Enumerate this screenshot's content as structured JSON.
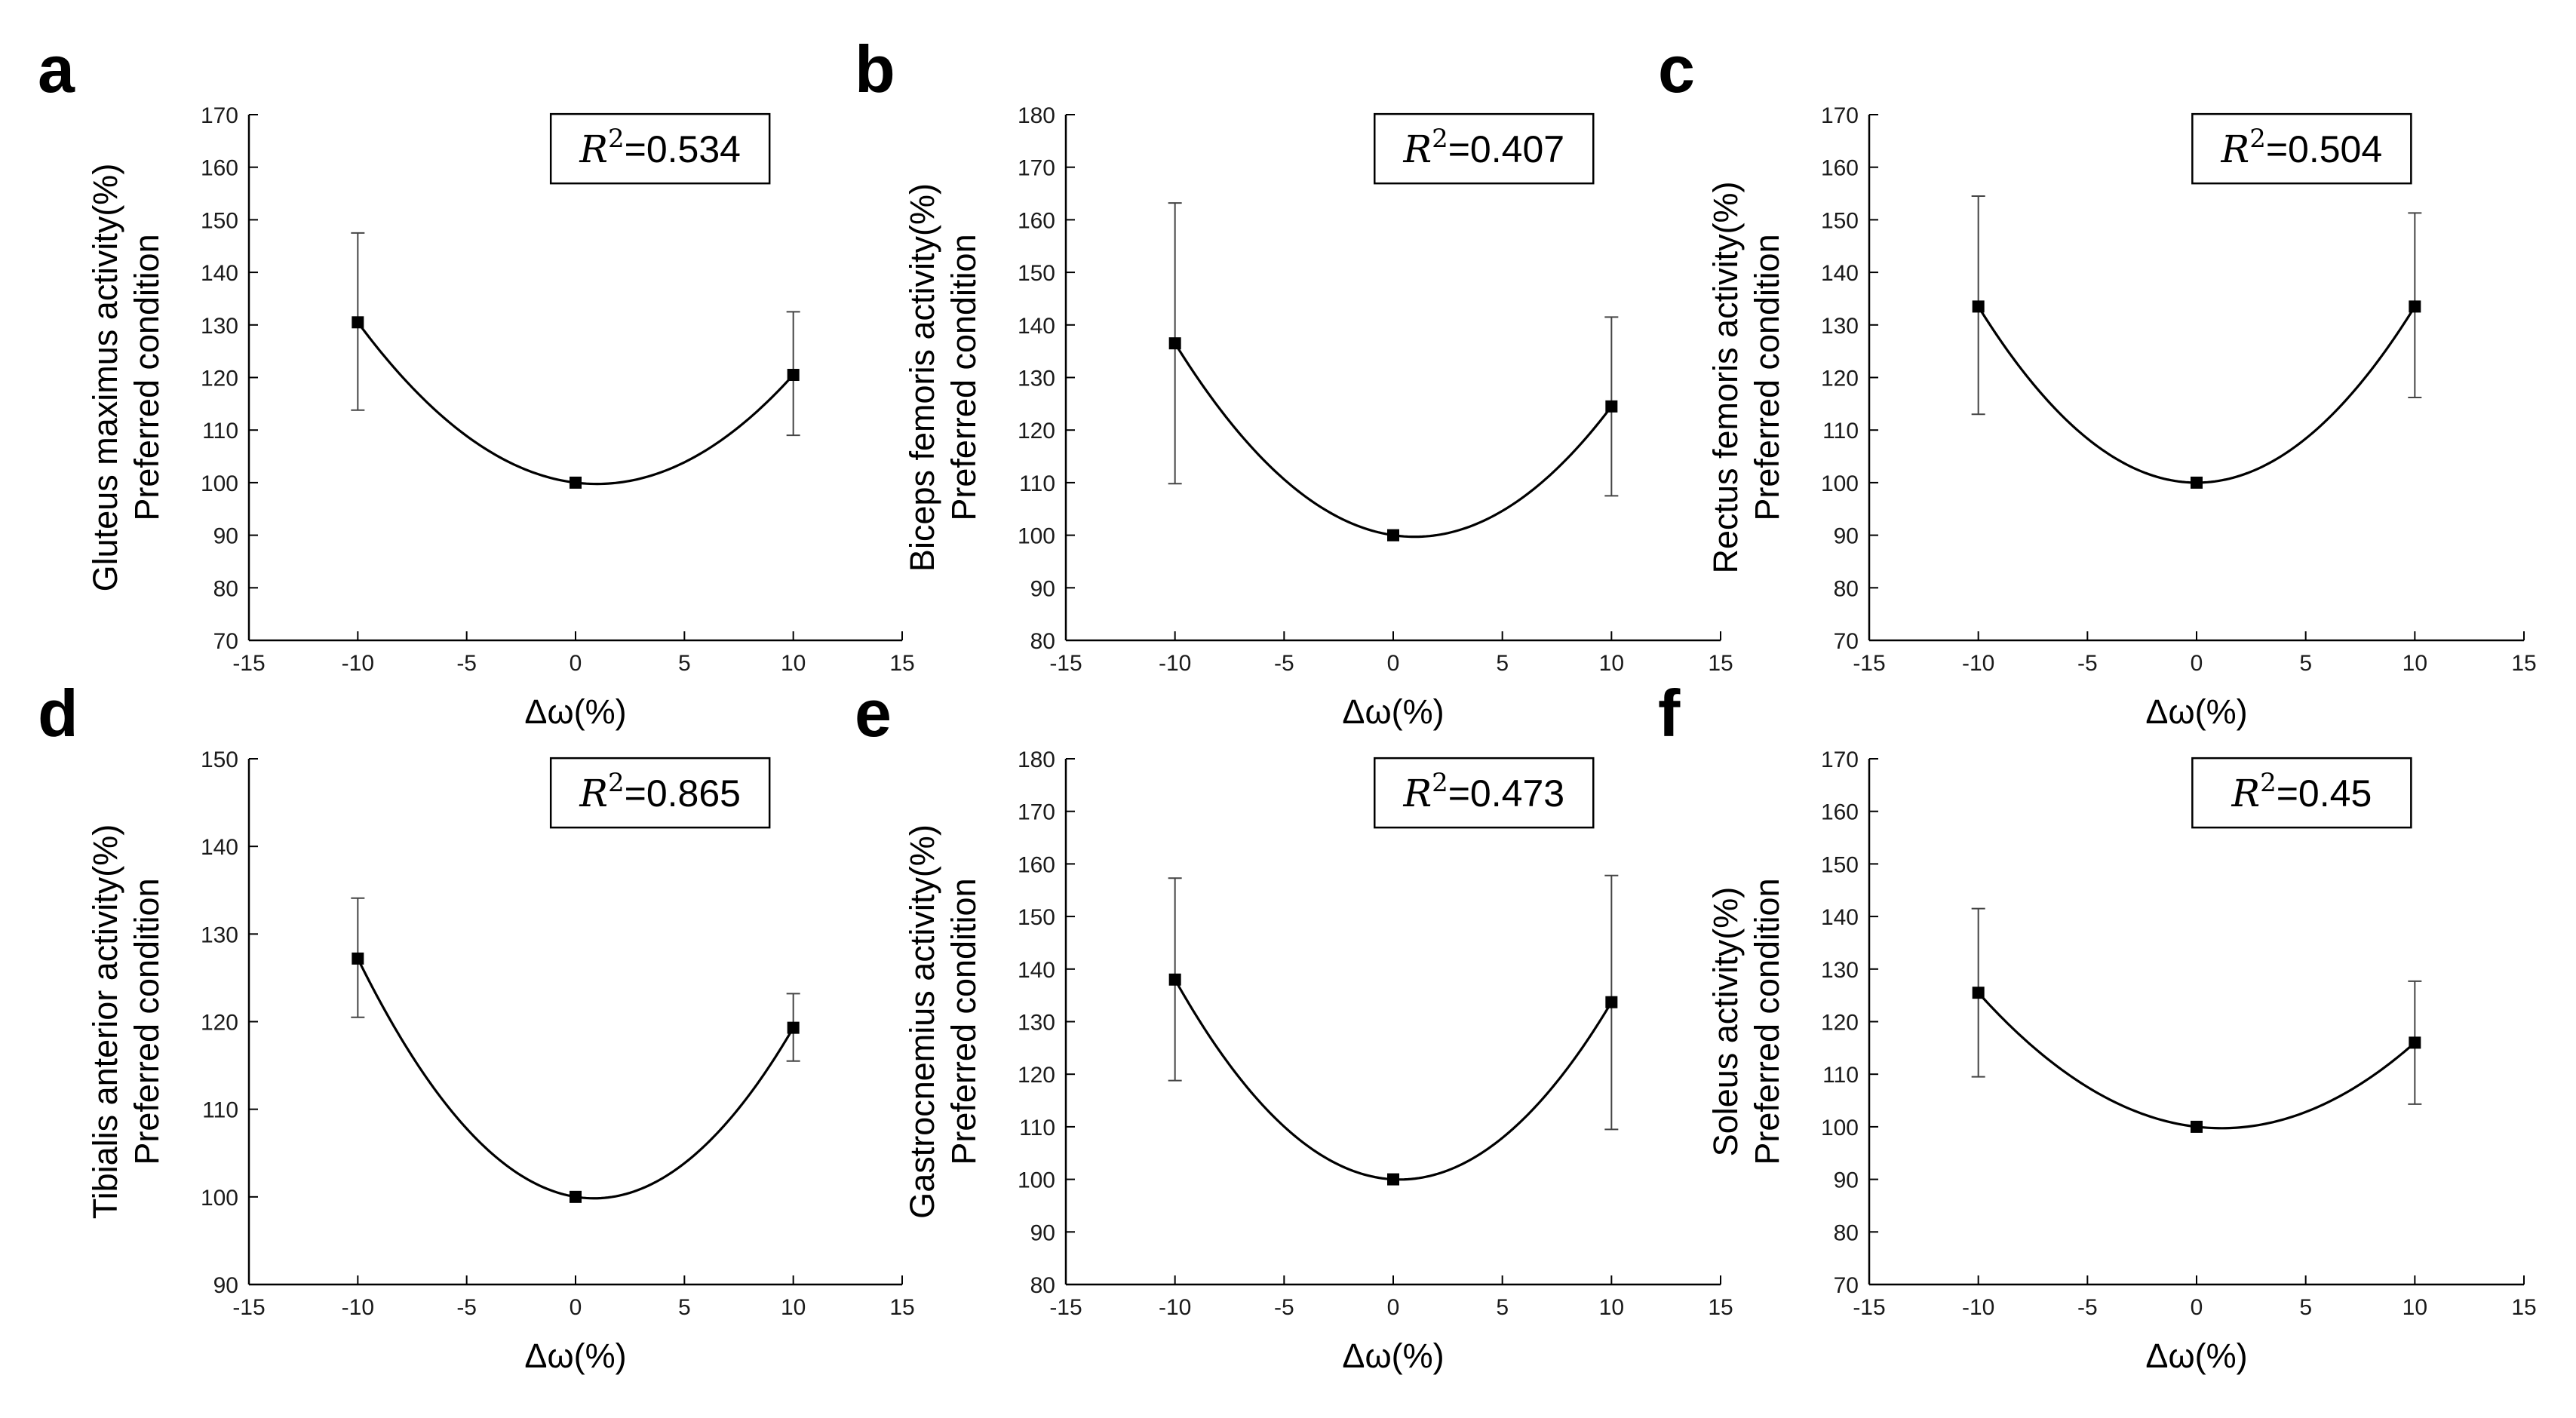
{
  "figure": {
    "background": "#ffffff",
    "line_color": "#000000"
  },
  "chart_data": [
    {
      "id": "a",
      "type": "scatter",
      "panel_label": "a",
      "ylabel_line1": "Gluteus maximus activity(%)",
      "ylabel_line2": "Preferred condition",
      "xlabel": "Δω(%)",
      "xlim": [
        -15,
        15
      ],
      "xticks": [
        -15,
        -10,
        -5,
        0,
        5,
        10,
        15
      ],
      "xtick_labels": [
        "-15",
        "-10",
        "-5",
        "0",
        "5",
        "10",
        "15"
      ],
      "ylim": [
        70,
        170
      ],
      "yticks": [
        70,
        80,
        90,
        100,
        110,
        120,
        130,
        140,
        150,
        160,
        170
      ],
      "ytick_labels": [
        "70",
        "80",
        "90",
        "100",
        "110",
        "120",
        "130",
        "140",
        "150",
        "160",
        "170"
      ],
      "x": [
        -10,
        0,
        10
      ],
      "y": [
        130.5,
        100,
        120.5
      ],
      "err_low": [
        113.8,
        100,
        109
      ],
      "err_high": [
        147.5,
        100,
        132.5
      ],
      "r2_label": "R",
      "r2_exp": "2",
      "r2_value": "=0.534"
    },
    {
      "id": "b",
      "type": "scatter",
      "panel_label": "b",
      "ylabel_line1": "Biceps femoris activity(%)",
      "ylabel_line2": "Preferred condition",
      "xlabel": "Δω(%)",
      "xlim": [
        -15,
        15
      ],
      "xticks": [
        -15,
        -10,
        -5,
        0,
        5,
        10,
        15
      ],
      "xtick_labels": [
        "-15",
        "-10",
        "-5",
        "0",
        "5",
        "10",
        "15"
      ],
      "ylim": [
        80,
        180
      ],
      "yticks": [
        80,
        90,
        100,
        110,
        120,
        130,
        140,
        150,
        160,
        170,
        180
      ],
      "ytick_labels": [
        "80",
        "90",
        "100",
        "110",
        "120",
        "130",
        "140",
        "150",
        "160",
        "170",
        "180"
      ],
      "x": [
        -10,
        0,
        10
      ],
      "y": [
        136.5,
        100,
        124.5
      ],
      "err_low": [
        109.8,
        100,
        107.5
      ],
      "err_high": [
        163.2,
        100,
        141.5
      ],
      "r2_label": "R",
      "r2_exp": "2",
      "r2_value": "=0.407"
    },
    {
      "id": "c",
      "type": "scatter",
      "panel_label": "c",
      "ylabel_line1": "Rectus femoris activity(%)",
      "ylabel_line2": "Preferred condition",
      "xlabel": "Δω(%)",
      "xlim": [
        -15,
        15
      ],
      "xticks": [
        -15,
        -10,
        -5,
        0,
        5,
        10,
        15
      ],
      "xtick_labels": [
        "-15",
        "-10",
        "-5",
        "0",
        "5",
        "10",
        "15"
      ],
      "ylim": [
        70,
        170
      ],
      "yticks": [
        70,
        80,
        90,
        100,
        110,
        120,
        130,
        140,
        150,
        160,
        170
      ],
      "ytick_labels": [
        "70",
        "80",
        "90",
        "100",
        "110",
        "120",
        "130",
        "140",
        "150",
        "160",
        "170"
      ],
      "x": [
        -10,
        0,
        10
      ],
      "y": [
        133.5,
        100,
        133.5
      ],
      "err_low": [
        113,
        100,
        116.2
      ],
      "err_high": [
        154.5,
        100,
        151.3
      ],
      "r2_label": "R",
      "r2_exp": "2",
      "r2_value": "=0.504"
    },
    {
      "id": "d",
      "type": "scatter",
      "panel_label": "d",
      "ylabel_line1": "Tibialis anterior activity(%)",
      "ylabel_line2": "Preferred condition",
      "xlabel": "Δω(%)",
      "xlim": [
        -15,
        15
      ],
      "xticks": [
        -15,
        -10,
        -5,
        0,
        5,
        10,
        15
      ],
      "xtick_labels": [
        "-15",
        "-10",
        "-5",
        "0",
        "5",
        "10",
        "15"
      ],
      "ylim": [
        90,
        150
      ],
      "yticks": [
        90,
        100,
        110,
        120,
        130,
        140,
        150
      ],
      "ytick_labels": [
        "90",
        "100",
        "110",
        "120",
        "130",
        "140",
        "150"
      ],
      "x": [
        -10,
        0,
        10
      ],
      "y": [
        127.2,
        100,
        119.3
      ],
      "err_low": [
        120.5,
        100,
        115.5
      ],
      "err_high": [
        134.1,
        100,
        123.2
      ],
      "r2_label": "R",
      "r2_exp": "2",
      "r2_value": "=0.865"
    },
    {
      "id": "e",
      "type": "scatter",
      "panel_label": "e",
      "ylabel_line1": "Gastrocnemius activity(%)",
      "ylabel_line2": "Preferred condition",
      "xlabel": "Δω(%)",
      "xlim": [
        -15,
        15
      ],
      "xticks": [
        -15,
        -10,
        -5,
        0,
        5,
        10,
        15
      ],
      "xtick_labels": [
        "-15",
        "-10",
        "-5",
        "0",
        "5",
        "10",
        "15"
      ],
      "ylim": [
        80,
        180
      ],
      "yticks": [
        80,
        90,
        100,
        110,
        120,
        130,
        140,
        150,
        160,
        170,
        180
      ],
      "ytick_labels": [
        "80",
        "90",
        "100",
        "110",
        "120",
        "130",
        "140",
        "150",
        "160",
        "170",
        "180"
      ],
      "x": [
        -10,
        0,
        10
      ],
      "y": [
        138,
        100,
        133.7
      ],
      "err_low": [
        118.8,
        100,
        109.5
      ],
      "err_high": [
        157.3,
        100,
        157.8
      ],
      "r2_label": "R",
      "r2_exp": "2",
      "r2_value": "=0.473"
    },
    {
      "id": "f",
      "type": "scatter",
      "panel_label": "f",
      "ylabel_line1": "Soleus activity(%)",
      "ylabel_line2": "Preferred condition",
      "xlabel": "Δω(%)",
      "xlim": [
        -15,
        15
      ],
      "xticks": [
        -15,
        -10,
        -5,
        0,
        5,
        10,
        15
      ],
      "xtick_labels": [
        "-15",
        "-10",
        "-5",
        "0",
        "5",
        "10",
        "15"
      ],
      "ylim": [
        70,
        170
      ],
      "yticks": [
        70,
        80,
        90,
        100,
        110,
        120,
        130,
        140,
        150,
        160,
        170
      ],
      "ytick_labels": [
        "70",
        "80",
        "90",
        "100",
        "110",
        "120",
        "130",
        "140",
        "150",
        "160",
        "170"
      ],
      "x": [
        -10,
        0,
        10
      ],
      "y": [
        125.5,
        100,
        116
      ],
      "err_low": [
        109.5,
        100,
        104.3
      ],
      "err_high": [
        141.5,
        100,
        127.7
      ],
      "r2_label": "R",
      "r2_exp": "2",
      "r2_value": "=0.45"
    }
  ]
}
